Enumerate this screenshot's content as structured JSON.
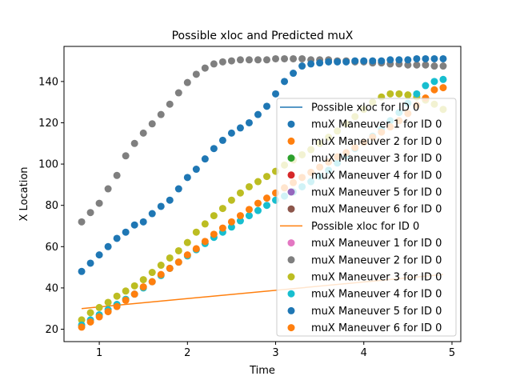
{
  "chart_data": {
    "type": "scatter",
    "title": "Possible xloc and Predicted muX",
    "xlabel": "Time",
    "ylabel": "X Location",
    "xlim": [
      0.6,
      5.1
    ],
    "ylim": [
      14,
      157
    ],
    "xticks": [
      1,
      2,
      3,
      4,
      5
    ],
    "yticks": [
      20,
      40,
      60,
      80,
      100,
      120,
      140
    ],
    "grid": false,
    "legend_position": "bottom-right",
    "colors": {
      "blue": "#1f77b4",
      "orange": "#ff7f0e",
      "green": "#2ca02c",
      "red": "#d62728",
      "purple": "#9467bd",
      "brown": "#8c564b",
      "pink": "#e377c2",
      "gray": "#7f7f7f",
      "olive": "#bcbd22",
      "cyan": "#17becf"
    },
    "x": [
      0.8,
      0.9,
      1.0,
      1.1,
      1.2,
      1.3,
      1.4,
      1.5,
      1.6,
      1.7,
      1.8,
      1.9,
      2.0,
      2.1,
      2.2,
      2.3,
      2.4,
      2.5,
      2.6,
      2.7,
      2.8,
      2.9,
      3.0,
      3.1,
      3.2,
      3.3,
      3.4,
      3.5,
      3.6,
      3.7,
      3.8,
      3.9,
      4.0,
      4.1,
      4.2,
      4.3,
      4.4,
      4.5,
      4.6,
      4.7,
      4.8,
      4.9
    ],
    "series": [
      {
        "name": "Possible xloc for ID 0",
        "kind": "line",
        "color": "#1f77b4",
        "visible": false,
        "x": [],
        "values": []
      },
      {
        "name": "muX Maneuver 1 for ID 0",
        "kind": "scatter",
        "color": "#1f77b4",
        "visible": false,
        "values": []
      },
      {
        "name": "muX Maneuver 2 for ID 0",
        "kind": "scatter",
        "color": "#ff7f0e",
        "visible": false,
        "values": []
      },
      {
        "name": "muX Maneuver 3 for ID 0",
        "kind": "scatter",
        "color": "#2ca02c",
        "visible": false,
        "values": []
      },
      {
        "name": "muX Maneuver 4 for ID 0",
        "kind": "scatter",
        "color": "#d62728",
        "visible": false,
        "values": []
      },
      {
        "name": "muX Maneuver 5 for ID 0",
        "kind": "scatter",
        "color": "#9467bd",
        "visible": false,
        "values": []
      },
      {
        "name": "muX Maneuver 6 for ID 0",
        "kind": "scatter",
        "color": "#8c564b",
        "visible": false,
        "values": []
      },
      {
        "name": "Possible xloc for ID 0",
        "kind": "line",
        "color": "#ff7f0e",
        "visible": true,
        "x": [
          0.8,
          4.9
        ],
        "values": [
          30.0,
          46.5
        ]
      },
      {
        "name": "muX Maneuver 1 for ID 0",
        "kind": "scatter",
        "color": "#e377c2",
        "visible": false,
        "values": []
      },
      {
        "name": "muX Maneuver 2 for ID 0",
        "kind": "scatter",
        "color": "#7f7f7f",
        "visible": true,
        "values": [
          72.0,
          76.5,
          81.0,
          88.0,
          94.5,
          104.0,
          110.0,
          115.0,
          119.5,
          124.0,
          129.0,
          134.5,
          139.5,
          143.5,
          146.5,
          148.5,
          149.5,
          150.0,
          150.5,
          150.5,
          150.5,
          150.5,
          151.0,
          151.0,
          151.0,
          151.0,
          150.5,
          150.5,
          150.5,
          150.0,
          150.0,
          149.5,
          149.5,
          149.0,
          149.0,
          148.5,
          148.5,
          148.0,
          148.0,
          148.0,
          147.5,
          147.5
        ]
      },
      {
        "name": "muX Maneuver 3 for ID 0",
        "kind": "scatter",
        "color": "#bcbd22",
        "visible": true,
        "values": [
          24.5,
          28.0,
          30.5,
          33.0,
          36.0,
          38.5,
          41.0,
          44.0,
          47.5,
          51.0,
          54.5,
          58.0,
          62.0,
          67.0,
          71.0,
          75.0,
          78.5,
          82.5,
          86.0,
          89.0,
          91.5,
          94.0,
          96.5,
          99.5,
          102.0,
          104.5,
          107.0,
          110.0,
          113.0,
          116.0,
          119.5,
          123.0,
          126.5,
          130.0,
          132.5,
          134.0,
          134.0,
          133.5,
          132.5,
          131.0,
          129.0,
          126.5
        ]
      },
      {
        "name": "muX Maneuver 4 for ID 0",
        "kind": "scatter",
        "color": "#17becf",
        "visible": true,
        "values": [
          22.0,
          24.5,
          27.0,
          29.5,
          32.0,
          34.5,
          37.0,
          40.0,
          43.0,
          46.0,
          49.5,
          52.5,
          55.5,
          58.5,
          61.5,
          64.5,
          67.0,
          69.5,
          72.5,
          75.0,
          77.5,
          80.0,
          82.5,
          84.5,
          86.5,
          89.0,
          91.5,
          94.0,
          97.0,
          100.5,
          104.0,
          107.5,
          110.5,
          113.5,
          117.0,
          121.0,
          125.0,
          129.5,
          134.0,
          138.0,
          140.0,
          141.0
        ]
      },
      {
        "name": "muX Maneuver 5 for ID 0",
        "kind": "scatter",
        "color": "#1f77b4",
        "visible": true,
        "values": [
          48.0,
          52.0,
          56.0,
          60.0,
          64.0,
          67.0,
          70.5,
          72.0,
          76.0,
          79.5,
          82.5,
          88.0,
          93.5,
          97.5,
          102.5,
          107.5,
          111.5,
          115.0,
          117.5,
          120.0,
          124.0,
          128.0,
          134.0,
          140.0,
          144.0,
          147.5,
          148.5,
          149.0,
          149.5,
          149.5,
          149.5,
          150.0,
          150.0,
          150.0,
          150.0,
          150.5,
          150.5,
          150.5,
          151.0,
          151.0,
          151.0,
          151.0
        ]
      },
      {
        "name": "muX Maneuver 6 for ID 0",
        "kind": "scatter",
        "color": "#ff7f0e",
        "visible": true,
        "values": [
          21.0,
          23.5,
          26.0,
          28.5,
          31.0,
          34.0,
          37.0,
          40.5,
          43.0,
          46.5,
          49.5,
          52.5,
          56.0,
          59.0,
          62.5,
          66.0,
          69.0,
          72.0,
          75.0,
          78.0,
          81.0,
          83.5,
          86.0,
          88.5,
          91.0,
          93.5,
          96.0,
          98.5,
          101.0,
          103.5,
          105.5,
          108.0,
          110.5,
          113.0,
          115.5,
          118.0,
          121.0,
          124.5,
          128.5,
          132.0,
          136.0,
          137.0
        ]
      }
    ]
  }
}
